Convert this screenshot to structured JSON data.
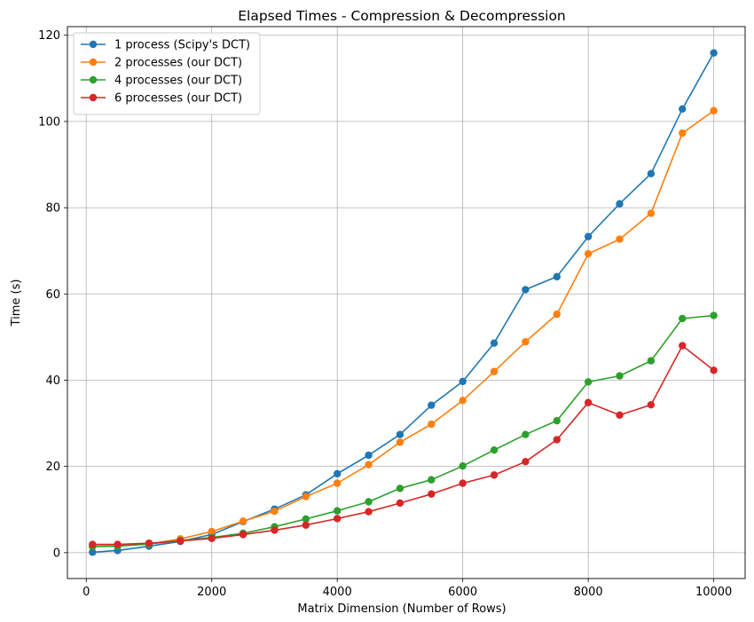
{
  "chart_data": {
    "type": "line",
    "title": "Elapsed Times - Compression & Decompression",
    "xlabel": "Matrix Dimension (Number of Rows)",
    "ylabel": "Time (s)",
    "xlim": [
      -300,
      10500
    ],
    "ylim": [
      -6,
      122
    ],
    "xticks": [
      0,
      2000,
      4000,
      6000,
      8000,
      10000
    ],
    "yticks": [
      0,
      20,
      40,
      60,
      80,
      100,
      120
    ],
    "grid": true,
    "legend_position": "top-left",
    "x": [
      100,
      500,
      1000,
      1500,
      2000,
      2500,
      3000,
      3500,
      4000,
      4500,
      5000,
      5500,
      6000,
      6500,
      7000,
      7500,
      8000,
      8500,
      9000,
      9500,
      10000
    ],
    "series": [
      {
        "name": "1 process (Scipy's DCT)",
        "color": "#1f77b4",
        "values": [
          0.1,
          0.5,
          1.5,
          2.6,
          4.2,
          7.2,
          10.1,
          13.4,
          18.3,
          22.6,
          27.4,
          34.2,
          39.7,
          48.6,
          61.0,
          64.0,
          73.3,
          80.9,
          87.9,
          102.9,
          115.9
        ]
      },
      {
        "name": "2 processes (our DCT)",
        "color": "#ff7f0e",
        "values": [
          1.5,
          1.6,
          2.0,
          3.2,
          4.9,
          7.3,
          9.6,
          13.0,
          16.1,
          20.4,
          25.6,
          29.8,
          35.3,
          42.0,
          48.9,
          55.3,
          69.3,
          72.7,
          78.7,
          97.3,
          102.5
        ]
      },
      {
        "name": "4 processes (our DCT)",
        "color": "#2ca02c",
        "values": [
          1.4,
          1.5,
          2.0,
          2.8,
          3.5,
          4.5,
          6.0,
          7.8,
          9.7,
          11.8,
          14.9,
          16.9,
          20.1,
          23.8,
          27.4,
          30.6,
          39.6,
          41.0,
          44.5,
          54.3,
          55.0
        ]
      },
      {
        "name": "6 processes (our DCT)",
        "color": "#d62728",
        "values": [
          1.9,
          1.9,
          2.2,
          2.7,
          3.3,
          4.2,
          5.2,
          6.4,
          7.9,
          9.5,
          11.5,
          13.6,
          16.1,
          18.0,
          21.1,
          26.2,
          34.8,
          31.9,
          34.3,
          48.0,
          42.3
        ]
      }
    ]
  }
}
